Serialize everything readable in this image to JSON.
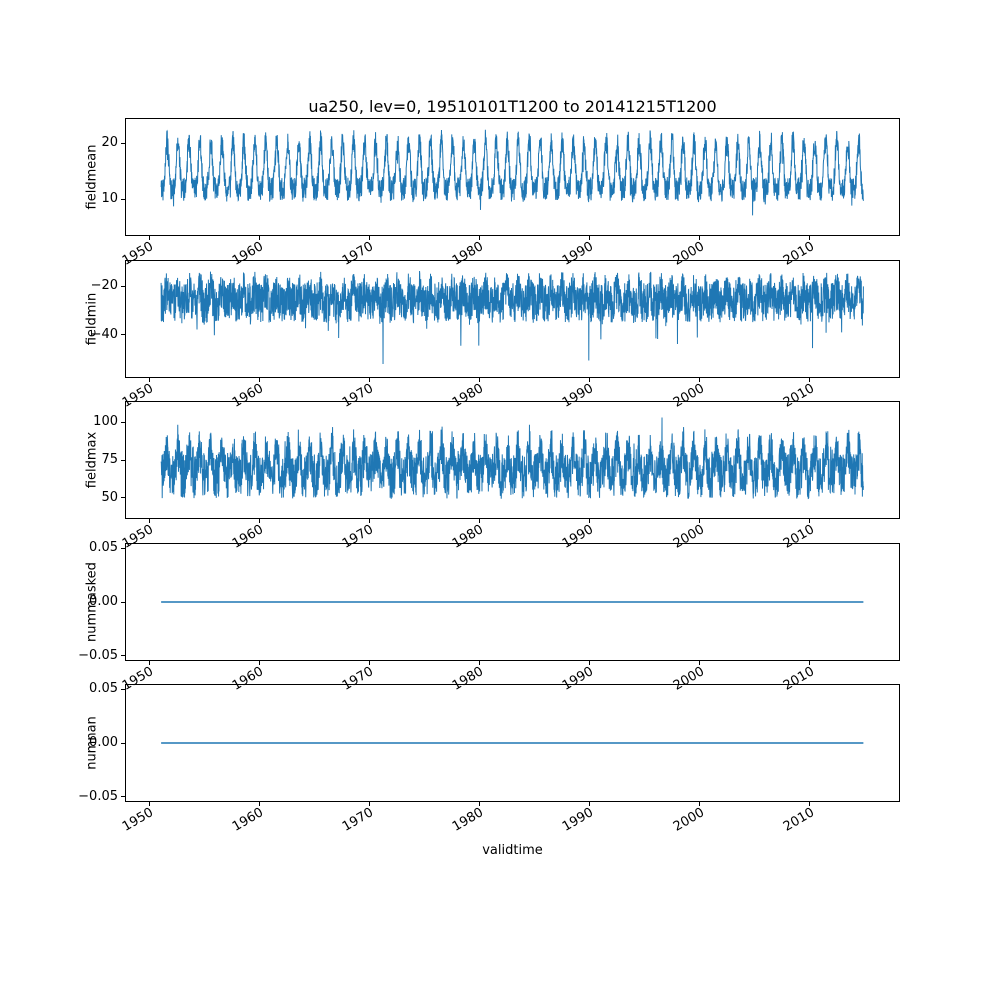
{
  "figure": {
    "background": "#ffffff",
    "line_color": "#1f77b4",
    "axis_color": "#000000"
  },
  "chart_data": {
    "type": "line",
    "title": "ua250, lev=0, 19510101T1200 to 20141215T1200",
    "xlabel": "validtime",
    "x_range": [
      1951.0,
      2014.96
    ],
    "xlim": [
      1947.8,
      2018.2
    ],
    "xticks": [
      1950,
      1960,
      1970,
      1980,
      1990,
      2000,
      2010
    ],
    "xtick_labels": [
      "1950",
      "1960",
      "1970",
      "1980",
      "1990",
      "2000",
      "2010"
    ],
    "legend": "none",
    "grid": false,
    "subplots": [
      {
        "ylabel": "fieldmean",
        "yticks": [
          20,
          10
        ],
        "ytick_labels": [
          "20",
          "10"
        ],
        "ylim": [
          3.5,
          24.5
        ],
        "signal": {
          "kind": "seasonal-noisy",
          "baseline": 14.8,
          "seasonal_amplitude": 4.3,
          "harmonic_amplitude": 1.3,
          "noise_amplitude": 2.2,
          "tail_prob": 0.02,
          "tail_max": 3.5,
          "tail_dir": -1,
          "spike_prob": 0,
          "spike_max": 0,
          "spike_dir": -1,
          "approx_min": 5,
          "approx_max": 23
        }
      },
      {
        "ylabel": "fieldmin",
        "yticks": [
          -20,
          -40
        ],
        "ytick_labels": [
          "−20",
          "−40"
        ],
        "ylim": [
          -58,
          -9
        ],
        "signal": {
          "kind": "seasonal-noisy",
          "baseline": -25,
          "seasonal_amplitude": 2.5,
          "harmonic_amplitude": 0.8,
          "noise_amplitude": 8.5,
          "tail_prob": 0.03,
          "tail_max": 8,
          "tail_dir": -1,
          "spike_prob": 0.002,
          "spike_max": 22,
          "spike_dir": -1,
          "approx_min": -55,
          "approx_max": -12
        }
      },
      {
        "ylabel": "fieldmax",
        "yticks": [
          100,
          75,
          50
        ],
        "ytick_labels": [
          "100",
          "75",
          "50"
        ],
        "ylim": [
          36,
          114
        ],
        "signal": {
          "kind": "seasonal-noisy",
          "baseline": 70,
          "seasonal_amplitude": 8.5,
          "harmonic_amplitude": 2.5,
          "noise_amplitude": 15,
          "tail_prob": 0.04,
          "tail_max": 10,
          "tail_dir": 1,
          "spike_prob": 0.004,
          "spike_max": 16,
          "spike_dir": 1,
          "approx_min": 40,
          "approx_max": 112
        }
      },
      {
        "ylabel": "nummasked",
        "yticks": [
          0.05,
          0.0,
          -0.05
        ],
        "ytick_labels": [
          "0.05",
          "0.00",
          "−0.05"
        ],
        "ylim": [
          -0.055,
          0.055
        ],
        "signal": {
          "kind": "constant",
          "value": 0.0
        }
      },
      {
        "ylabel": "numnan",
        "yticks": [
          0.05,
          0.0,
          -0.05
        ],
        "ytick_labels": [
          "0.05",
          "0.00",
          "−0.05"
        ],
        "ylim": [
          -0.055,
          0.055
        ],
        "signal": {
          "kind": "constant",
          "value": 0.0
        }
      }
    ]
  }
}
